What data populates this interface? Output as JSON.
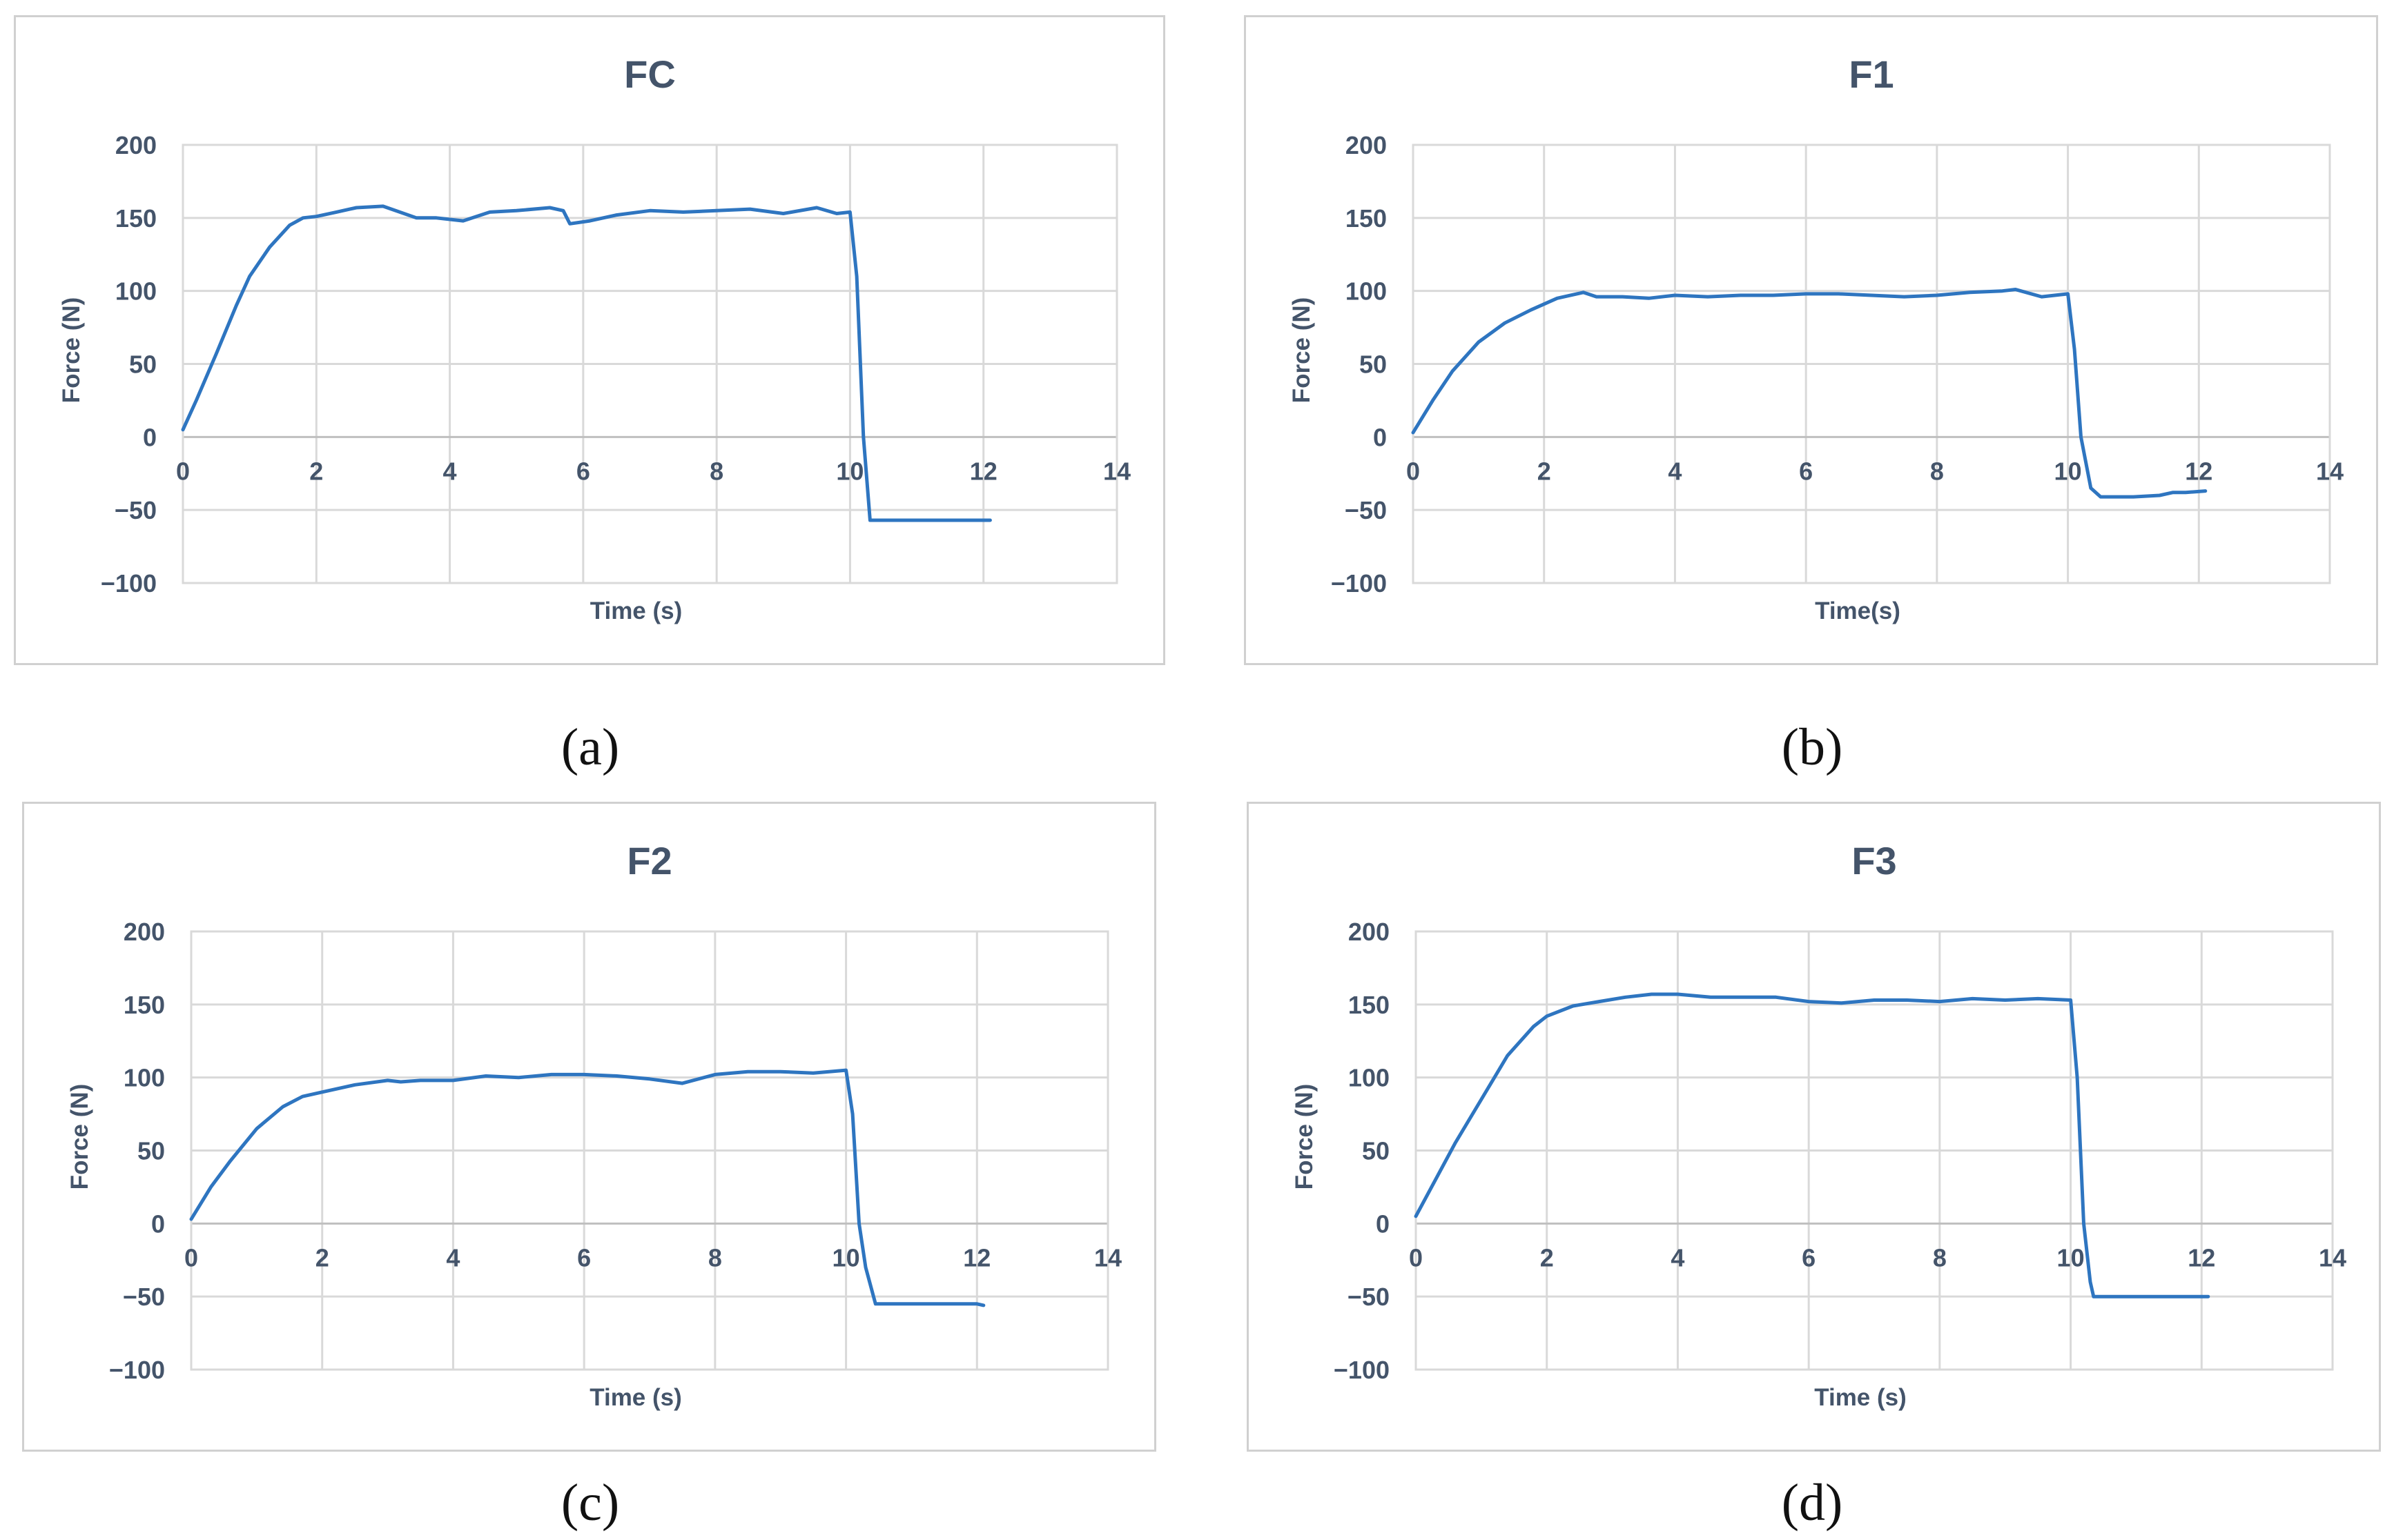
{
  "figure": {
    "captions": [
      "(a)",
      "(b)",
      "(c)",
      "(d)"
    ]
  },
  "colors": {
    "line": "#2E75C0",
    "grid": "#D9D9D9",
    "frame": "#D0D0D0",
    "text": "#44546A"
  },
  "chart_data": [
    {
      "type": "line",
      "title": "FC",
      "xlabel": "Time (s)",
      "ylabel": "Force (N)",
      "xlim": [
        0,
        14
      ],
      "ylim": [
        -100,
        200
      ],
      "xticks": [
        0,
        2,
        4,
        6,
        8,
        10,
        12,
        14
      ],
      "yticks": [
        -100,
        -50,
        0,
        50,
        100,
        150,
        200
      ],
      "ytick_labels": [
        "−100",
        "−50",
        "0",
        "50",
        "100",
        "150",
        "200"
      ],
      "grid": true,
      "series": [
        {
          "x": [
            0,
            0.2,
            0.5,
            0.8,
            1.0,
            1.3,
            1.6,
            1.8,
            2.0,
            2.3,
            2.6,
            3.0,
            3.5,
            3.8,
            4.2,
            4.6,
            5.0,
            5.5,
            5.7,
            5.8,
            6.1,
            6.5,
            7.0,
            7.5,
            8.0,
            8.5,
            9.0,
            9.5,
            9.8,
            10.0,
            10.1,
            10.2,
            10.3,
            12.1
          ],
          "y": [
            5,
            25,
            57,
            90,
            110,
            130,
            145,
            150,
            151,
            154,
            157,
            158,
            150,
            150,
            148,
            154,
            155,
            157,
            155,
            146,
            148,
            152,
            155,
            154,
            155,
            156,
            153,
            157,
            153,
            154,
            110,
            0,
            -57,
            -57
          ]
        }
      ]
    },
    {
      "type": "line",
      "title": "F1",
      "xlabel": "Time(s)",
      "ylabel": "Force (N)",
      "xlim": [
        0,
        14
      ],
      "ylim": [
        -100,
        200
      ],
      "xticks": [
        0,
        2,
        4,
        6,
        8,
        10,
        12,
        14
      ],
      "yticks": [
        -100,
        -50,
        0,
        50,
        100,
        150,
        200
      ],
      "ytick_labels": [
        "−100",
        "−50",
        "0",
        "50",
        "100",
        "150",
        "200"
      ],
      "grid": true,
      "series": [
        {
          "x": [
            0,
            0.3,
            0.6,
            1.0,
            1.4,
            1.8,
            2.2,
            2.6,
            2.8,
            3.2,
            3.6,
            4.0,
            4.5,
            5.0,
            5.5,
            6.0,
            6.5,
            7.0,
            7.5,
            8.0,
            8.5,
            9.0,
            9.2,
            9.6,
            10.0,
            10.1,
            10.2,
            10.35,
            10.5,
            11.0,
            11.4,
            11.6,
            11.8,
            12.1
          ],
          "y": [
            3,
            25,
            45,
            65,
            78,
            87,
            95,
            99,
            96,
            96,
            95,
            97,
            96,
            97,
            97,
            98,
            98,
            97,
            96,
            97,
            99,
            100,
            101,
            96,
            98,
            60,
            0,
            -35,
            -41,
            -41,
            -40,
            -38,
            -38,
            -37
          ]
        }
      ]
    },
    {
      "type": "line",
      "title": "F2",
      "xlabel": "Time (s)",
      "ylabel": "Force  (N)",
      "xlim": [
        0,
        14
      ],
      "ylim": [
        -100,
        200
      ],
      "xticks": [
        0,
        2,
        4,
        6,
        8,
        10,
        12,
        14
      ],
      "yticks": [
        -100,
        -50,
        0,
        50,
        100,
        150,
        200
      ],
      "ytick_labels": [
        "−100",
        "−50",
        "0",
        "50",
        "100",
        "150",
        "200"
      ],
      "grid": true,
      "series": [
        {
          "x": [
            0,
            0.3,
            0.6,
            1.0,
            1.4,
            1.7,
            2.0,
            2.5,
            3.0,
            3.2,
            3.5,
            4.0,
            4.5,
            5.0,
            5.5,
            6.0,
            6.5,
            7.0,
            7.5,
            8.0,
            8.5,
            9.0,
            9.5,
            10.0,
            10.1,
            10.2,
            10.3,
            10.45,
            11.0,
            12.0,
            12.1
          ],
          "y": [
            3,
            25,
            43,
            65,
            80,
            87,
            90,
            95,
            98,
            97,
            98,
            98,
            101,
            100,
            102,
            102,
            101,
            99,
            96,
            102,
            104,
            104,
            103,
            105,
            75,
            0,
            -30,
            -55,
            -55,
            -55,
            -56
          ]
        }
      ]
    },
    {
      "type": "line",
      "title": "F3",
      "xlabel": "Time (s)",
      "ylabel": "Force (N)",
      "xlim": [
        0,
        14
      ],
      "ylim": [
        -100,
        200
      ],
      "xticks": [
        0,
        2,
        4,
        6,
        8,
        10,
        12,
        14
      ],
      "yticks": [
        -100,
        -50,
        0,
        50,
        100,
        150,
        200
      ],
      "ytick_labels": [
        "−100",
        "−50",
        "0",
        "50",
        "100",
        "150",
        "200"
      ],
      "grid": true,
      "series": [
        {
          "x": [
            0,
            0.3,
            0.6,
            1.0,
            1.4,
            1.8,
            2.0,
            2.4,
            2.8,
            3.2,
            3.6,
            4.0,
            4.5,
            5.0,
            5.5,
            6.0,
            6.5,
            7.0,
            7.5,
            8.0,
            8.5,
            9.0,
            9.5,
            10.0,
            10.1,
            10.2,
            10.3,
            10.35,
            11.0,
            12.1
          ],
          "y": [
            5,
            30,
            55,
            85,
            115,
            135,
            142,
            149,
            152,
            155,
            157,
            157,
            155,
            155,
            155,
            152,
            151,
            153,
            153,
            152,
            154,
            153,
            154,
            153,
            100,
            0,
            -40,
            -50,
            -50,
            -50
          ]
        }
      ]
    }
  ]
}
